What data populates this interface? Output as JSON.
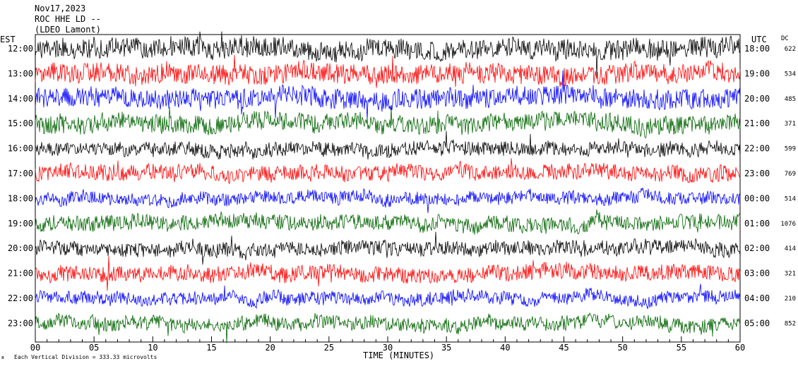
{
  "header": {
    "date": "Nov17,2023",
    "station": "ROC HHE LD --",
    "note": "(LDEO Lamont)"
  },
  "axes": {
    "left_label": "EST",
    "right_label": "UTC",
    "dc_label": "DC",
    "x_title": "TIME (MINUTES)",
    "footer": "Each Vertical Division = 333.33 microvolts"
  },
  "colors": [
    "#000000",
    "#ff0000",
    "#0000ff",
    "#006400"
  ],
  "chart_data": {
    "type": "line",
    "title": "",
    "xlabel": "TIME (MINUTES)",
    "ylabel": "",
    "xlim": [
      0,
      60
    ],
    "x_ticks": [
      "00",
      "05",
      "10",
      "15",
      "20",
      "25",
      "30",
      "35",
      "40",
      "45",
      "50",
      "55",
      "60"
    ],
    "series": [
      {
        "est": "12:00",
        "utc": "18:00",
        "dc": "622",
        "color": "#000000",
        "amplitude": 14
      },
      {
        "est": "13:00",
        "utc": "19:00",
        "dc": "534",
        "color": "#ff0000",
        "amplitude": 14
      },
      {
        "est": "14:00",
        "utc": "20:00",
        "dc": "485",
        "color": "#0000ff",
        "amplitude": 14
      },
      {
        "est": "15:00",
        "utc": "21:00",
        "dc": "371",
        "color": "#006400",
        "amplitude": 13
      },
      {
        "est": "16:00",
        "utc": "22:00",
        "dc": "599",
        "color": "#000000",
        "amplitude": 10
      },
      {
        "est": "17:00",
        "utc": "23:00",
        "dc": "769",
        "color": "#ff0000",
        "amplitude": 11
      },
      {
        "est": "18:00",
        "utc": "00:00",
        "dc": "514",
        "color": "#0000ff",
        "amplitude": 9
      },
      {
        "est": "19:00",
        "utc": "01:00",
        "dc": "1076",
        "color": "#006400",
        "amplitude": 11
      },
      {
        "est": "20:00",
        "utc": "02:00",
        "dc": "414",
        "color": "#000000",
        "amplitude": 10
      },
      {
        "est": "21:00",
        "utc": "03:00",
        "dc": "321",
        "color": "#ff0000",
        "amplitude": 11
      },
      {
        "est": "22:00",
        "utc": "04:00",
        "dc": "210",
        "color": "#0000ff",
        "amplitude": 9
      },
      {
        "est": "23:00",
        "utc": "05:00",
        "dc": "852",
        "color": "#006400",
        "amplitude": 10
      }
    ]
  }
}
